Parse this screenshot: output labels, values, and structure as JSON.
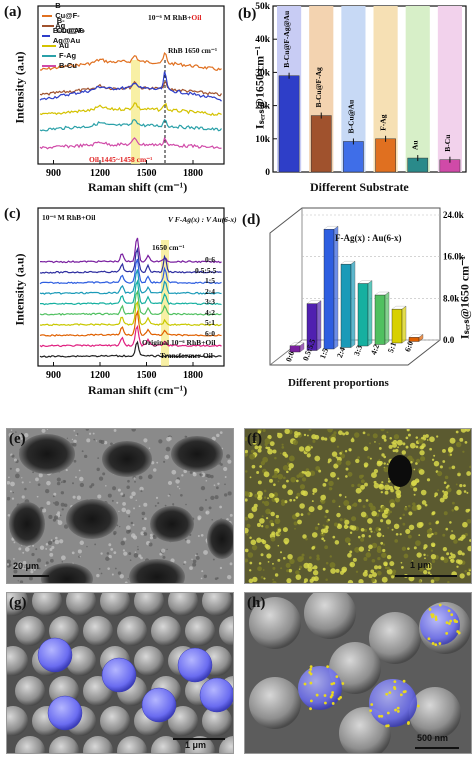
{
  "panels": {
    "a": {
      "label": "(a)",
      "ylabel": "Intensity (a.u)",
      "xlabel": "Raman shift (cm⁻¹)",
      "legend": [
        "B-Cu@F-Ag",
        "B-Cu@Au",
        "B-Cu@F-Ag@Au",
        "Au",
        "F-Ag",
        "B-Cu"
      ],
      "conc_prefix": "10⁻⁶ M RhB+",
      "conc_oil": "Oil",
      "peak_label": "RhB 1650 cm⁻¹",
      "oil_label": "Oil 1445~1458 cm⁻¹"
    },
    "b": {
      "label": "(b)",
      "ylabel": "Iₛₑᵣₛ@1650 cm⁻¹",
      "xlabel": "Different Substrate"
    },
    "c": {
      "label": "(c)",
      "ylabel": "Intensity (a.u)",
      "xlabel": "Raman shift (cm⁻¹)",
      "conc": "10⁻⁶ M RhB+Oil",
      "ratio_header": "V F-Ag(x) : V Au(6-x)",
      "peak_label": "1650 cm⁻¹",
      "curve_labels": [
        "0:6",
        "0.5:5.5",
        "1:5",
        "2:4",
        "3:3",
        "4:2",
        "5:1",
        "6:0"
      ],
      "bottom_labels": [
        "Original 10⁻⁶ RhB+Oil",
        "Transformer Oil"
      ]
    },
    "d": {
      "label": "(d)",
      "title": "F-Ag(x) : Au(6-x)",
      "xlabel": "Different proportions",
      "ylabel": "Iₛₑᵣₛ@1650 cm⁻¹"
    },
    "e": {
      "label": "(e)",
      "scale": "20 μm"
    },
    "f": {
      "label": "(f)",
      "scale": "1 μm"
    },
    "g": {
      "label": "(g)",
      "scale": "1 μm"
    },
    "h": {
      "label": "(h)",
      "scale": "500 nm"
    }
  },
  "chart_data": [
    {
      "type": "line",
      "panel": "a",
      "x_ticks": [
        900,
        1200,
        1500,
        1800
      ],
      "xlim": [
        800,
        2000
      ],
      "series": [
        {
          "name": "B-Cu@F-Ag",
          "color": "#e07020"
        },
        {
          "name": "B-Cu@Au",
          "color": "#a0522d"
        },
        {
          "name": "B-Cu@F-Ag@Au",
          "color": "#2e3ec8"
        },
        {
          "name": "Au",
          "color": "#d4c200"
        },
        {
          "name": "F-Ag",
          "color": "#2aa0a8"
        },
        {
          "name": "B-Cu",
          "color": "#d04aa8"
        }
      ],
      "highlight_bands": [
        [
          1445,
          1458
        ],
        [
          1650,
          1650
        ]
      ]
    },
    {
      "type": "bar",
      "panel": "b",
      "categories": [
        "B-Cu@F-Ag@Au",
        "B-Cu@F-Ag",
        "B-Cu@Au",
        "F-Ag",
        "Au",
        "B-Cu"
      ],
      "values": [
        29000,
        17000,
        9200,
        10000,
        4200,
        3700
      ],
      "bar_colors": [
        "#2e3ec8",
        "#a0522d",
        "#3f6ee8",
        "#e07020",
        "#2a8a8a",
        "#d04aa8"
      ],
      "bg_colors": [
        "#c8ccf4",
        "#f3d3b0",
        "#c7d9f5",
        "#f6e0b4",
        "#d7efc8",
        "#f2d2ec"
      ],
      "ylim": [
        0,
        50000
      ],
      "y_ticks": [
        "0",
        "10k",
        "20k",
        "30k",
        "40k",
        "50k"
      ]
    },
    {
      "type": "line",
      "panel": "c",
      "x_ticks": [
        900,
        1200,
        1500,
        1800
      ],
      "xlim": [
        800,
        2000
      ],
      "series": [
        {
          "name": "0:6",
          "color": "#7a20a0"
        },
        {
          "name": "0.5:5.5",
          "color": "#2e2ea0"
        },
        {
          "name": "1:5",
          "color": "#2e5ee0"
        },
        {
          "name": "2:4",
          "color": "#1a9ab8"
        },
        {
          "name": "3:3",
          "color": "#16b0a0"
        },
        {
          "name": "4:2",
          "color": "#50c060"
        },
        {
          "name": "5:1",
          "color": "#c8c800"
        },
        {
          "name": "6:0",
          "color": "#e06000"
        },
        {
          "name": "Original 10⁻⁶ RhB+Oil",
          "color": "#e02080"
        },
        {
          "name": "Transformer Oil",
          "color": "#222222"
        }
      ]
    },
    {
      "type": "bar",
      "panel": "d",
      "categories": [
        "0:6",
        "0.5:5.5",
        "1:5",
        "2:4",
        "3:3",
        "4:2",
        "5:1",
        "6:0"
      ],
      "values": [
        1200,
        9000,
        23000,
        16000,
        12000,
        9500,
        6500,
        800
      ],
      "bar_colors": [
        "#7a20a0",
        "#5020b0",
        "#2e5ee0",
        "#1a9ab8",
        "#16b0a0",
        "#50c060",
        "#d8d000",
        "#e06000"
      ],
      "ylim": [
        0,
        24000
      ],
      "y_ticks": [
        "0.0",
        "8.0k",
        "16.0k",
        "24.0k"
      ]
    }
  ]
}
